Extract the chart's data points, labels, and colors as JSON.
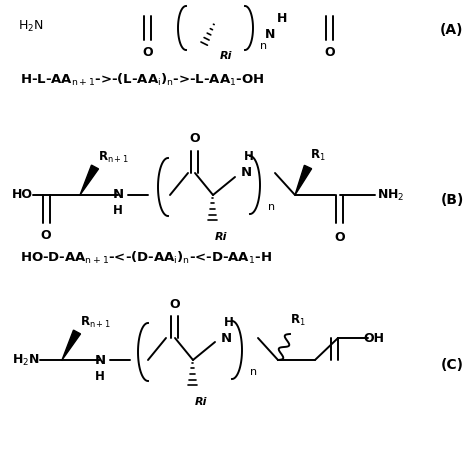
{
  "bg_color": "#ffffff",
  "figsize": [
    4.74,
    4.74
  ],
  "dpi": 100,
  "label_A": "(A)",
  "label_B": "(B)",
  "label_C": "(C)",
  "text_color": "#000000",
  "lw": 1.4
}
